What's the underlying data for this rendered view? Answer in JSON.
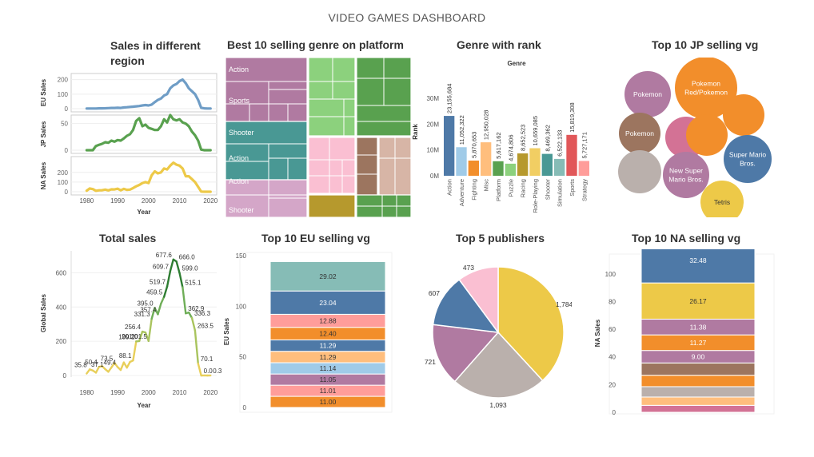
{
  "dashboard": {
    "title": "VIDEO GAMES DASHBOARD"
  },
  "panels": {
    "sales_region": "Sales in different\nregion",
    "treemap": "Best 10 selling genre on platform",
    "genre_rank": "Genre with rank",
    "jp_top10": "Top 10 JP selling vg",
    "total_sales": "Total sales",
    "eu_top10": "Top 10 EU selling vg",
    "publishers": "Top 5 publishers",
    "na_top10": "Top 10 NA selling vg"
  },
  "chart_data": [
    {
      "id": "sales_region",
      "type": "line",
      "xlabel": "Year",
      "x_ticks": [
        1980,
        1990,
        2000,
        2010,
        2020
      ],
      "x": [
        1980,
        1981,
        1982,
        1983,
        1984,
        1985,
        1986,
        1987,
        1988,
        1989,
        1990,
        1991,
        1992,
        1993,
        1994,
        1995,
        1996,
        1997,
        1998,
        1999,
        2000,
        2001,
        2002,
        2003,
        2004,
        2005,
        2006,
        2007,
        2008,
        2009,
        2010,
        2011,
        2012,
        2013,
        2014,
        2015,
        2016,
        2017,
        2018,
        2019,
        2020
      ],
      "series": [
        {
          "name": "EU Sales",
          "color": "#6f9dc6",
          "ylim": [
            0,
            220
          ],
          "ticks": [
            0,
            100,
            200
          ],
          "values": [
            1,
            1,
            1,
            1,
            2,
            2,
            3,
            4,
            5,
            5,
            6,
            5,
            8,
            10,
            12,
            14,
            16,
            18,
            22,
            25,
            22,
            28,
            45,
            60,
            70,
            90,
            100,
            140,
            160,
            170,
            190,
            200,
            175,
            140,
            120,
            100,
            60,
            6,
            2,
            1,
            1
          ]
        },
        {
          "name": "JP Sales",
          "color": "#59a14f",
          "ylim": [
            0,
            60
          ],
          "ticks": [
            0,
            50
          ],
          "values": [
            0,
            0,
            0,
            8,
            10,
            12,
            15,
            14,
            18,
            16,
            19,
            18,
            22,
            27,
            30,
            38,
            55,
            60,
            45,
            48,
            42,
            40,
            38,
            38,
            45,
            58,
            52,
            66,
            58,
            56,
            58,
            52,
            50,
            45,
            35,
            28,
            18,
            1,
            0,
            0,
            0
          ]
        },
        {
          "name": "NA Sales",
          "color": "#edc948",
          "ylim": [
            0,
            330
          ],
          "ticks": [
            0,
            100,
            200
          ],
          "values": [
            11,
            34,
            27,
            10,
            15,
            16,
            22,
            14,
            25,
            24,
            31,
            15,
            30,
            20,
            22,
            38,
            56,
            70,
            90,
            100,
            90,
            170,
            210,
            190,
            200,
            240,
            230,
            270,
            300,
            280,
            270,
            240,
            160,
            160,
            130,
            100,
            50,
            2,
            0,
            0,
            0
          ]
        }
      ]
    },
    {
      "id": "treemap",
      "type": "treemap",
      "labels": [
        "Action",
        "Sports",
        "Shooter",
        "Action",
        "Action",
        "Shooter"
      ]
    },
    {
      "id": "genre_rank",
      "type": "bar",
      "title": "Genre",
      "ylabel": "Rank",
      "ylim": [
        0,
        34000000
      ],
      "y_ticks": [
        "0M",
        "10M",
        "20M",
        "30M"
      ],
      "categories": [
        "Action",
        "Adventure",
        "Fighting",
        "Misc",
        "Platform",
        "Puzzle",
        "Racing",
        "Role-Playing",
        "Shooter",
        "Simulation",
        "Sports",
        "Strategy"
      ],
      "values": [
        23155684,
        11052322,
        5870653,
        12950028,
        5617162,
        4674806,
        8652523,
        10659085,
        8469362,
        6522133,
        15819308,
        5727171
      ],
      "value_labels": [
        "23,155,684",
        "11,052,322",
        "5,870,653",
        "12,950,028",
        "5,617,162",
        "4,674,806",
        "8,652,523",
        "10,659,085",
        "8,469,362",
        "6,522,133",
        "15,819,308",
        "5,727,171"
      ],
      "colors": [
        "#4e79a7",
        "#a0cbe8",
        "#f28e2b",
        "#ffbe7d",
        "#59a14f",
        "#8cd17d",
        "#b6992d",
        "#f1ce63",
        "#499894",
        "#86bcb6",
        "#e15759",
        "#ff9d9a"
      ]
    },
    {
      "id": "jp_top10",
      "type": "bubble",
      "bubble_labels": [
        "Pokemon",
        "Pokemon\nRed/Pokemon",
        "Pokemon",
        "Super Mario\nBros.",
        "New Super\nMario Bros.",
        "Tetris"
      ]
    },
    {
      "id": "total_sales",
      "type": "line",
      "ylabel": "Global Sales",
      "xlabel": "Year",
      "ylim": [
        0,
        700
      ],
      "y_ticks": [
        0,
        200,
        400,
        600
      ],
      "x_ticks": [
        1980,
        1990,
        2000,
        2010,
        2020
      ],
      "x": [
        1980,
        1981,
        1982,
        1983,
        1984,
        1985,
        1986,
        1987,
        1988,
        1989,
        1990,
        1991,
        1992,
        1993,
        1994,
        1995,
        1996,
        1997,
        1998,
        1999,
        2000,
        2001,
        2002,
        2003,
        2004,
        2005,
        2006,
        2007,
        2008,
        2009,
        2010,
        2011,
        2012,
        2013,
        2014,
        2015,
        2016,
        2017,
        2018,
        2019,
        2020
      ],
      "values": [
        11.4,
        35.8,
        28.9,
        16.8,
        50.4,
        53.9,
        37.1,
        21.7,
        47.2,
        73.5,
        49.4,
        32.2,
        76.2,
        45.9,
        79.2,
        88.1,
        199.1,
        201.0,
        256.4,
        251.3,
        201.5,
        331.3,
        395.0,
        357.4,
        419.3,
        459.5,
        519.7,
        609.7,
        677.6,
        666.0,
        599.0,
        515.1,
        362.9,
        368.1,
        336.3,
        263.5,
        70.1,
        0.0,
        0.1,
        0.0,
        0.3
      ],
      "point_labels": [
        {
          "year": 1980.6,
          "value": 35.8,
          "text": "35.8"
        },
        {
          "year": 1984,
          "value": 50.4,
          "text": "50.4"
        },
        {
          "year": 1986,
          "value": 37.1,
          "text": "37.1"
        },
        {
          "year": 1989,
          "value": 73.5,
          "text": "73.5"
        },
        {
          "year": 1990,
          "value": 49.4,
          "text": "49.4"
        },
        {
          "year": 1995,
          "value": 88.1,
          "text": "88.1"
        },
        {
          "year": 1996,
          "value": 199.1,
          "text": "199.1"
        },
        {
          "year": 1997,
          "value": 201.0,
          "text": "201.0"
        },
        {
          "year": 1998,
          "value": 256.4,
          "text": "256.4"
        },
        {
          "year": 2000,
          "value": 201.5,
          "text": "201.5"
        },
        {
          "year": 2001,
          "value": 331.3,
          "text": "331.3"
        },
        {
          "year": 2002,
          "value": 395.0,
          "text": "395.0"
        },
        {
          "year": 2003,
          "value": 357.4,
          "text": "357.4"
        },
        {
          "year": 2005,
          "value": 459.5,
          "text": "459.5"
        },
        {
          "year": 2006,
          "value": 519.7,
          "text": "519.7"
        },
        {
          "year": 2007,
          "value": 609.7,
          "text": "609.7"
        },
        {
          "year": 2008,
          "value": 677.6,
          "text": "677.6"
        },
        {
          "year": 2009,
          "value": 666.0,
          "text": "666.0"
        },
        {
          "year": 2010,
          "value": 599.0,
          "text": "599.0"
        },
        {
          "year": 2011,
          "value": 515.1,
          "text": "515.1"
        },
        {
          "year": 2012,
          "value": 362.9,
          "text": "362.9"
        },
        {
          "year": 2014,
          "value": 336.3,
          "text": "336.3"
        },
        {
          "year": 2015,
          "value": 263.5,
          "text": "263.5"
        },
        {
          "year": 2016,
          "value": 70.1,
          "text": "70.1"
        },
        {
          "year": 2017,
          "value": 0.0,
          "text": "0.0"
        },
        {
          "year": 2020,
          "value": 0.3,
          "text": "0.3"
        }
      ]
    },
    {
      "id": "eu_top10",
      "type": "bar",
      "ylabel": "EU Sales",
      "ylim": [
        0,
        150
      ],
      "y_ticks": [
        0,
        50,
        100,
        150
      ],
      "values": [
        29.02,
        23.04,
        12.88,
        12.4,
        11.29,
        11.29,
        11.14,
        11.05,
        11.01,
        11.0
      ],
      "value_labels": [
        "29.02",
        "23.04",
        "12.88",
        "12.40",
        "11.29",
        "11.29",
        "11.14",
        "11.05",
        "11.01",
        "11.00"
      ],
      "colors": [
        "#86bcb6",
        "#4e79a7",
        "#ff9d9a",
        "#f28e2b",
        "#4e79a7",
        "#ffbe7d",
        "#a0cbe8",
        "#b07aa1",
        "#ff9d9a",
        "#f28e2b"
      ]
    },
    {
      "id": "publishers",
      "type": "pie",
      "values": [
        1784,
        1093,
        721,
        607,
        473
      ],
      "value_labels": [
        "1,784",
        "1,093",
        "721",
        "607",
        "473"
      ],
      "colors": [
        "#edc948",
        "#bab0ac",
        "#b07aa1",
        "#4e79a7",
        "#fabfd2"
      ]
    },
    {
      "id": "na_top10",
      "type": "bar",
      "ylabel": "NA Sales",
      "ylim": [
        0,
        112
      ],
      "y_ticks": [
        0,
        20,
        40,
        60,
        80,
        100
      ],
      "values": [
        32.48,
        26.17,
        11.38,
        11.27,
        9.0,
        8.89,
        8.25,
        7.5,
        6.0,
        5.0
      ],
      "value_labels": [
        "32.48",
        "26.17",
        "11.38",
        "11.27",
        "9.00",
        "",
        "",
        "",
        "",
        ""
      ],
      "colors": [
        "#4e79a7",
        "#edc948",
        "#b07aa1",
        "#f28e2b",
        "#b07aa1",
        "#9c755f",
        "#f28e2b",
        "#bab0ac",
        "#ffbe7d",
        "#d37295"
      ]
    }
  ]
}
